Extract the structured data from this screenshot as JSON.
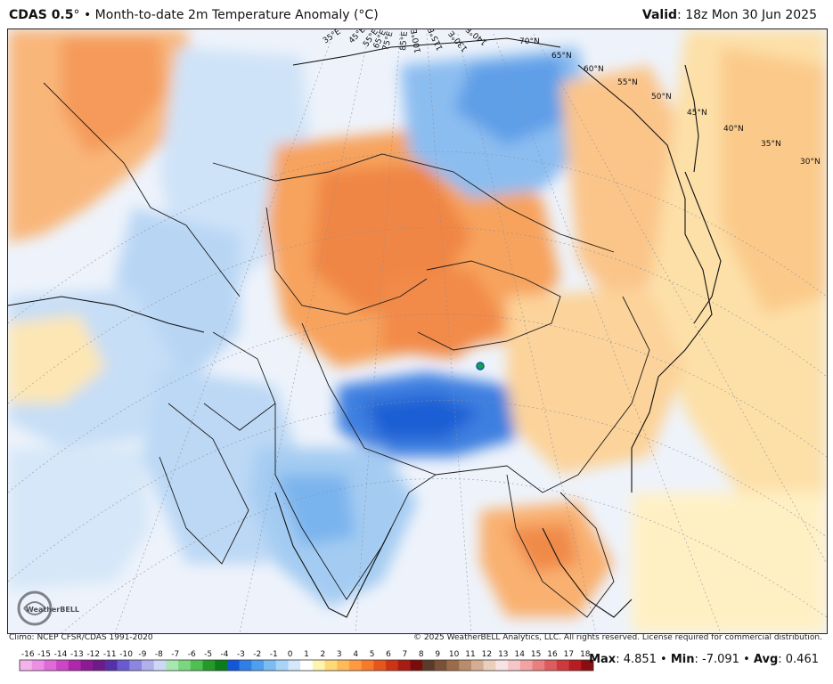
{
  "header": {
    "model": "CDAS 0.5",
    "degree_mark": "°",
    "bullet": "•",
    "product": "Month-to-date 2m Temperature Anomaly (°C)",
    "valid_label": "Valid",
    "valid_value": ": 18z Mon 30 Jun 2025"
  },
  "footer": {
    "climo": "Climo: NCEP CFSR/CDAS 1991-2020",
    "copyright": "© 2025 WeatherBELL Analytics, LLC. All rights reserved. License required for commercial distribution."
  },
  "logo": {
    "text": "WeatherBELL",
    "icon": "swirl-logo"
  },
  "stats": {
    "max_label": "Max",
    "max_value": ": 4.851",
    "min_label": "Min",
    "min_value": ": -7.091",
    "avg_label": "Avg",
    "avg_value": ": 0.461",
    "sep": " • "
  },
  "colorbar": {
    "unit": "°C",
    "ticks": [
      "-16",
      "-15",
      "-14",
      "-13",
      "-12",
      "-11",
      "-10",
      "-9",
      "-8",
      "-7",
      "-6",
      "-5",
      "-4",
      "-3",
      "-2",
      "-1",
      "0",
      "1",
      "2",
      "3",
      "4",
      "5",
      "6",
      "7",
      "8",
      "9",
      "10",
      "11",
      "12",
      "13",
      "14",
      "15",
      "16",
      "17",
      "18"
    ],
    "colors": [
      "#f5b3ee",
      "#ee8fe6",
      "#e06ad8",
      "#cc46c6",
      "#b027ad",
      "#8e1a93",
      "#6f1a8a",
      "#5530a8",
      "#6a5ad0",
      "#8d86e0",
      "#b0b0ec",
      "#cdd8f6",
      "#a7e7b0",
      "#7bd67f",
      "#4fbf54",
      "#259a2a",
      "#0b7d1a",
      "#1356d8",
      "#2f7fe7",
      "#4f9fee",
      "#7cbbf3",
      "#a8d4f7",
      "#d3e8fb",
      "#ffffff",
      "#fff3b0",
      "#ffd978",
      "#ffbb5a",
      "#ff9a40",
      "#f77a2b",
      "#e6561c",
      "#cc3414",
      "#a81c12",
      "#7a0c0c",
      "#5a3b2a",
      "#7a5136",
      "#9c6c4a",
      "#b98d6c",
      "#d3ae92",
      "#ead0bc",
      "#f7e3e3",
      "#f6c6c6",
      "#f2a3a3",
      "#ea7f80",
      "#dd5c5d",
      "#ce3a3c",
      "#b81c20",
      "#8a0d12"
    ]
  },
  "map_labels": {
    "longitudes": [
      "35°E",
      "45°E",
      "55°E",
      "65°E",
      "75°E",
      "85°E",
      "100°E",
      "115°E",
      "130°E",
      "140°E"
    ],
    "latitudes": [
      "70°N",
      "65°N",
      "60°N",
      "55°N",
      "50°N",
      "45°N",
      "40°N",
      "35°N",
      "30°N"
    ]
  },
  "anomaly_regions": [
    {
      "name": "scandinavia-warm",
      "anomaly": 2
    },
    {
      "name": "eastern-europe-cool",
      "anomaly": -1
    },
    {
      "name": "kazakhstan-mongolia-warm",
      "anomaly": 3
    },
    {
      "name": "central-siberia-cool",
      "anomaly": -2
    },
    {
      "name": "tibetan-plateau-cold",
      "anomaly": -4
    },
    {
      "name": "india-cool",
      "anomaly": -2
    },
    {
      "name": "indochina-warm",
      "anomaly": 3
    },
    {
      "name": "north-pacific-warm",
      "anomaly": 1
    },
    {
      "name": "china-warm",
      "anomaly": 1
    }
  ]
}
